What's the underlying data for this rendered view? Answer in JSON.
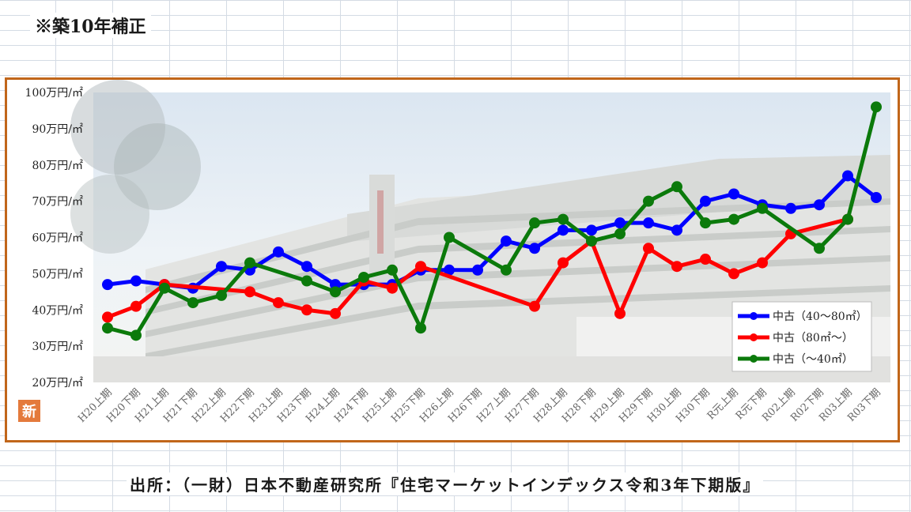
{
  "header": {
    "note": "※築10年補正"
  },
  "footer": {
    "source": "出所：（一財）日本不動産研究所『住宅マーケットインデックス令和3年下期版』"
  },
  "badge": {
    "label": "新"
  },
  "chart_data": {
    "type": "line",
    "title": "",
    "xlabel": "",
    "ylabel": "",
    "ylim": [
      20,
      100
    ],
    "y_ticks": [
      100,
      90,
      80,
      70,
      60,
      50,
      40,
      30,
      20
    ],
    "y_tick_labels": [
      "100万円/㎡",
      "90万円/㎡",
      "80万円/㎡",
      "70万円/㎡",
      "60万円/㎡",
      "50万円/㎡",
      "40万円/㎡",
      "30万円/㎡",
      "20万円/㎡"
    ],
    "grid": false,
    "legend_position": "bottom-right",
    "categories": [
      "H20上期",
      "H20下期",
      "H21上期",
      "H21下期",
      "H22上期",
      "H22下期",
      "H23上期",
      "H23下期",
      "H24上期",
      "H24下期",
      "H25上期",
      "H25下期",
      "H26上期",
      "H26下期",
      "H27上期",
      "H27下期",
      "H28上期",
      "H28下期",
      "H29上期",
      "H29下期",
      "H30上期",
      "H30下期",
      "R元上期",
      "R元下期",
      "R02上期",
      "R02下期",
      "R03上期",
      "R03下期"
    ],
    "series": [
      {
        "name": "中古（40～80㎡）",
        "color": "#0000ff",
        "values": [
          47,
          48,
          47,
          46,
          52,
          51,
          56,
          52,
          47,
          47,
          47,
          51,
          51,
          51,
          59,
          57,
          62,
          62,
          64,
          64,
          62,
          70,
          72,
          69,
          68,
          69,
          77,
          71
        ]
      },
      {
        "name": "中古（80㎡～）",
        "color": "#ff0000",
        "values": [
          38,
          41,
          47,
          null,
          null,
          45,
          42,
          40,
          39,
          48,
          46,
          52,
          null,
          null,
          null,
          41,
          53,
          59,
          39,
          57,
          52,
          54,
          50,
          53,
          61,
          null,
          65,
          null
        ]
      },
      {
        "name": "中古（～40㎡）",
        "color": "#0b7a0b",
        "values": [
          35,
          33,
          46,
          42,
          44,
          53,
          null,
          48,
          45,
          49,
          51,
          35,
          60,
          null,
          51,
          64,
          65,
          59,
          61,
          70,
          74,
          64,
          65,
          68,
          null,
          57,
          65,
          96
        ]
      }
    ]
  }
}
